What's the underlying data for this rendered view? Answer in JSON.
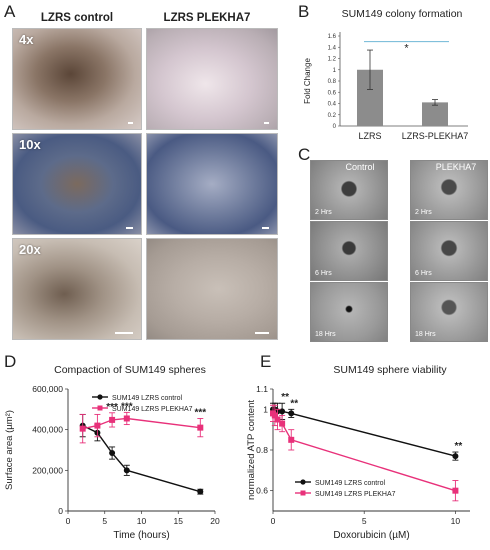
{
  "panels": {
    "A": {
      "letter": "A",
      "col_headers": [
        "LZRS control",
        "LZRS PLEKHA7"
      ],
      "magnifications": [
        "4x",
        "10x",
        "20x"
      ]
    },
    "B": {
      "letter": "B",
      "title": "SUM149 colony formation",
      "significance": "*"
    },
    "C": {
      "letter": "C",
      "col_headers": [
        "Control",
        "PLEKHA7"
      ],
      "time_labels": [
        [
          "2 Hrs",
          "2 Hrs"
        ],
        [
          "6 Hrs",
          "6 Hrs"
        ],
        [
          "18 Hrs",
          "18 Hrs"
        ]
      ]
    },
    "D": {
      "letter": "D",
      "title": "Compaction of SUM149 spheres",
      "annotations": [
        "***",
        "***",
        "***"
      ]
    },
    "E": {
      "letter": "E",
      "title": "SUM149 sphere viability",
      "annotations": [
        "**",
        "**",
        "**"
      ]
    }
  },
  "colors": {
    "black_series": "#111111",
    "pink_series": "#e8317a",
    "bar_fill": "#8c8c8c",
    "bracket": "#6fb7d6"
  },
  "chart_data": [
    {
      "id": "B",
      "type": "bar",
      "title": "SUM149 colony formation",
      "ylabel": "Fold Change",
      "categories": [
        "LZRS",
        "LZRS-PLEKHA7"
      ],
      "values": [
        1.0,
        0.42
      ],
      "errors": [
        0.35,
        0.05
      ],
      "ylim": [
        0,
        1.6
      ],
      "yticks": [
        0,
        0.2,
        0.4,
        0.6,
        0.8,
        1,
        1.2,
        1.4,
        1.6
      ],
      "ytick_labels": [
        "0",
        "0.2",
        "0.4",
        "0.6",
        "0.8",
        "1",
        "1.2",
        "1.4",
        "1.6"
      ]
    },
    {
      "id": "D",
      "type": "line",
      "title": "Compaction of SUM149 spheres",
      "xlabel": "Time (hours)",
      "ylabel": "Surface area (µm²)",
      "xlim": [
        0,
        20
      ],
      "ylim": [
        0,
        600000
      ],
      "xticks": [
        0,
        5,
        10,
        15,
        20
      ],
      "yticks": [
        0,
        200000,
        400000,
        600000
      ],
      "ytick_labels": [
        "0",
        "200,000",
        "400,000",
        "600,000"
      ],
      "legend": "top-right",
      "series": [
        {
          "name": "SUM149 LZRS control",
          "x": [
            2,
            4,
            6,
            8,
            18
          ],
          "y": [
            420000,
            385000,
            285000,
            200000,
            95000
          ],
          "err": [
            55000,
            40000,
            30000,
            25000,
            12000
          ]
        },
        {
          "name": "SUM149 LZRS PLEKHA7",
          "x": [
            2,
            4,
            6,
            8,
            18
          ],
          "y": [
            405000,
            420000,
            448000,
            455000,
            410000
          ],
          "err": [
            70000,
            55000,
            35000,
            30000,
            45000
          ]
        }
      ],
      "annotation_x": [
        6,
        8,
        18
      ],
      "annotation_labels": [
        "***",
        "***",
        "***"
      ]
    },
    {
      "id": "E",
      "type": "line",
      "title": "SUM149 sphere viability",
      "xlabel": "Doxorubicin (µM)",
      "ylabel": "normalized ATP content",
      "xlim": [
        0,
        10.8
      ],
      "ylim": [
        0.5,
        1.1
      ],
      "xticks": [
        0,
        5,
        10
      ],
      "yticks": [
        0.6,
        0.8,
        1,
        1.1
      ],
      "ytick_labels": [
        "0.6",
        "0.8",
        "1",
        "1.1"
      ],
      "legend": "bottom-left",
      "series": [
        {
          "name": "SUM149 LZRS control",
          "x": [
            0,
            0.1,
            0.25,
            0.5,
            1,
            10
          ],
          "y": [
            1.0,
            1.0,
            0.99,
            0.99,
            0.98,
            0.77
          ],
          "err": [
            0.03,
            0.03,
            0.04,
            0.04,
            0.02,
            0.02
          ]
        },
        {
          "name": "SUM149 LZRS PLEKHA7",
          "x": [
            0,
            0.1,
            0.25,
            0.5,
            1,
            10
          ],
          "y": [
            0.98,
            0.97,
            0.95,
            0.93,
            0.85,
            0.6
          ],
          "err": [
            0.04,
            0.05,
            0.05,
            0.04,
            0.05,
            0.05
          ]
        }
      ],
      "annotation_x": [
        0.5,
        1,
        10
      ],
      "annotation_labels": [
        "**",
        "**",
        "**"
      ]
    }
  ]
}
